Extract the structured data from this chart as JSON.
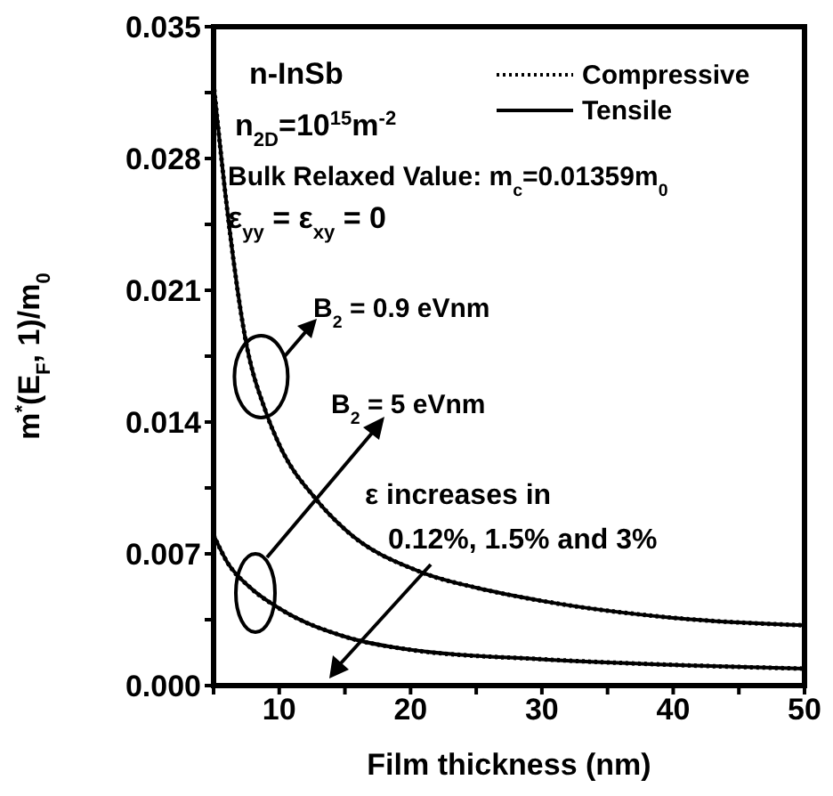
{
  "chart_data": {
    "type": "line",
    "xlabel": "Film thickness (nm)",
    "ylabel": "m$^{*}$(E$_{F}$, 1)/m$_{0}$",
    "xlim": [
      5,
      50
    ],
    "xticks": [
      {
        "value": 5,
        "label": null
      },
      10,
      {
        "value": 15,
        "label": null
      },
      20,
      {
        "value": 25,
        "label": null
      },
      30,
      {
        "value": 35,
        "label": null
      },
      40,
      {
        "value": 45,
        "label": null
      },
      50
    ],
    "ylim": [
      0,
      0.035
    ],
    "yticks": [
      "0.000",
      {
        "value": 0.0035,
        "label": null
      },
      {
        "value": 0.007,
        "label": "0.007"
      },
      {
        "value": 0.0105,
        "label": null
      },
      {
        "value": 0.014,
        "label": "0.014"
      },
      {
        "value": 0.0175,
        "label": null
      },
      {
        "value": 0.021,
        "label": "0.021"
      },
      {
        "value": 0.0245,
        "label": null
      },
      {
        "value": 0.028,
        "label": "0.028"
      },
      {
        "value": 0.0315,
        "label": null
      },
      {
        "value": 0.035,
        "label": "0.035"
      }
    ],
    "grid": false,
    "legend": "top right",
    "marker": "none",
    "series": [
      {
        "name": "Compressive",
        "color": "#000000",
        "line_style": "dotted",
        "x": [
          5,
          6,
          7.4,
          9,
          10,
          12.8,
          15,
          20.9,
          25,
          30,
          40,
          50
        ],
        "values": [
          0.032,
          0.0255,
          0.0185,
          0.0145,
          0.0128,
          0.0099,
          0.0083,
          0.006,
          0.0052,
          0.0045,
          0.0036,
          0.0032
        ]
      },
      {
        "name": "Tensile",
        "color": "#000000",
        "line_style": "solid",
        "x": [
          5,
          6,
          7.4,
          9,
          10,
          12.8,
          15,
          20.9,
          25,
          30,
          40,
          50
        ],
        "values": [
          0.032,
          0.0255,
          0.0185,
          0.0145,
          0.0128,
          0.0099,
          0.0083,
          0.006,
          0.0052,
          0.0045,
          0.0036,
          0.0032
        ]
      },
      {
        "color": "#000000",
        "line_style": "dotted",
        "x": [
          5,
          6,
          7.8,
          10,
          15,
          20,
          30,
          40,
          50
        ],
        "values": [
          0.008,
          0.0066,
          0.0052,
          0.0041,
          0.0026,
          0.0019,
          0.0014,
          0.0011,
          0.0009
        ]
      },
      {
        "color": "#000000",
        "line_style": "solid",
        "x": [
          5,
          6,
          7.8,
          10,
          15,
          20,
          30,
          40,
          50
        ],
        "values": [
          0.008,
          0.0066,
          0.0052,
          0.0041,
          0.0026,
          0.0019,
          0.0014,
          0.0011,
          0.0009
        ]
      }
    ],
    "annotations": [
      "n-InSb",
      "n$_{2D}$=10$^{15}$m$^{-2}$",
      "Bulk Relaxed Value: m$_{c}$=0.01359m$_{0}$",
      "ε$_{yy}$ = ε$_{xy}$ = 0",
      "B$_{2}$ = 0.9 eVnm",
      "B$_{2}$ = 5 eVnm",
      "ε increases in",
      "0.12%,  1.5%  and 3%"
    ]
  }
}
